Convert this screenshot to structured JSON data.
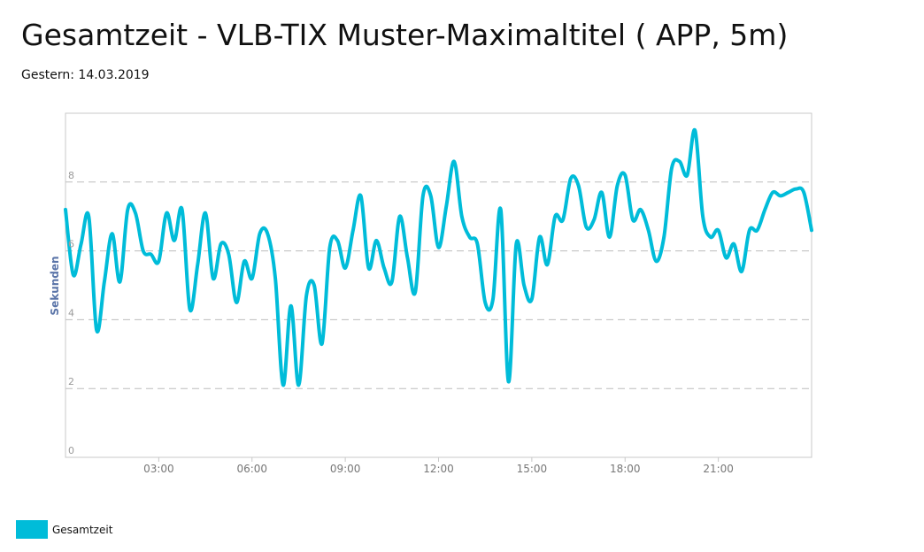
{
  "title": "Gesamtzeit - VLB-TIX Muster-Maximaltitel ( APP, 5m)",
  "subtitle": "Gestern: 14.03.2019",
  "chart_data": {
    "type": "line",
    "ylabel": "Sekunden",
    "ylim": [
      0,
      10
    ],
    "xlim": [
      0,
      24
    ],
    "x_ticks": [
      "03:00",
      "06:00",
      "09:00",
      "12:00",
      "15:00",
      "18:00",
      "21:00"
    ],
    "y_ticks": [
      0,
      2,
      4,
      6,
      8
    ],
    "grid": "horizontal-dashed",
    "legend_position": "bottom-left",
    "color": "#00bcd9",
    "series": [
      {
        "name": "Gesamtzeit",
        "x": [
          0.0,
          0.25,
          0.5,
          0.75,
          1.0,
          1.25,
          1.5,
          1.75,
          2.0,
          2.25,
          2.5,
          2.75,
          3.0,
          3.25,
          3.5,
          3.75,
          4.0,
          4.25,
          4.5,
          4.75,
          5.0,
          5.25,
          5.5,
          5.75,
          6.0,
          6.25,
          6.5,
          6.75,
          7.0,
          7.25,
          7.5,
          7.75,
          8.0,
          8.25,
          8.5,
          8.75,
          9.0,
          9.25,
          9.5,
          9.75,
          10.0,
          10.25,
          10.5,
          10.75,
          11.0,
          11.25,
          11.5,
          11.75,
          12.0,
          12.25,
          12.5,
          12.75,
          13.0,
          13.25,
          13.5,
          13.75,
          14.0,
          14.25,
          14.5,
          14.75,
          15.0,
          15.25,
          15.5,
          15.75,
          16.0,
          16.25,
          16.5,
          16.75,
          17.0,
          17.25,
          17.5,
          17.75,
          18.0,
          18.25,
          18.5,
          18.75,
          19.0,
          19.25,
          19.5,
          19.75,
          20.0,
          20.25,
          20.5,
          20.75,
          21.0,
          21.25,
          21.5,
          21.75,
          22.0,
          22.25,
          22.5,
          22.75,
          23.0,
          23.25,
          23.5,
          23.75,
          24.0
        ],
        "values": [
          7.2,
          5.3,
          6.2,
          7.0,
          3.7,
          5.1,
          6.5,
          5.1,
          7.2,
          7.1,
          6.0,
          5.9,
          5.7,
          7.1,
          6.3,
          7.2,
          4.3,
          5.6,
          7.1,
          5.2,
          6.2,
          5.9,
          4.5,
          5.7,
          5.2,
          6.5,
          6.5,
          5.2,
          2.1,
          4.4,
          2.1,
          4.7,
          5.0,
          3.3,
          6.1,
          6.3,
          5.5,
          6.6,
          7.6,
          5.5,
          6.3,
          5.5,
          5.1,
          7.0,
          5.8,
          4.8,
          7.6,
          7.6,
          6.1,
          7.3,
          8.6,
          7.0,
          6.4,
          6.2,
          4.5,
          4.6,
          7.2,
          2.2,
          6.2,
          5.0,
          4.6,
          6.4,
          5.6,
          7.0,
          6.9,
          8.1,
          7.9,
          6.7,
          6.9,
          7.7,
          6.4,
          7.9,
          8.2,
          6.9,
          7.2,
          6.6,
          5.7,
          6.4,
          8.4,
          8.6,
          8.2,
          9.5,
          7.0,
          6.4,
          6.6,
          5.8,
          6.2,
          5.4,
          6.6,
          6.6,
          7.2,
          7.7,
          7.6,
          7.7,
          7.8,
          7.7,
          6.6
        ]
      }
    ]
  },
  "legend": {
    "label": "Gesamtzeit"
  }
}
